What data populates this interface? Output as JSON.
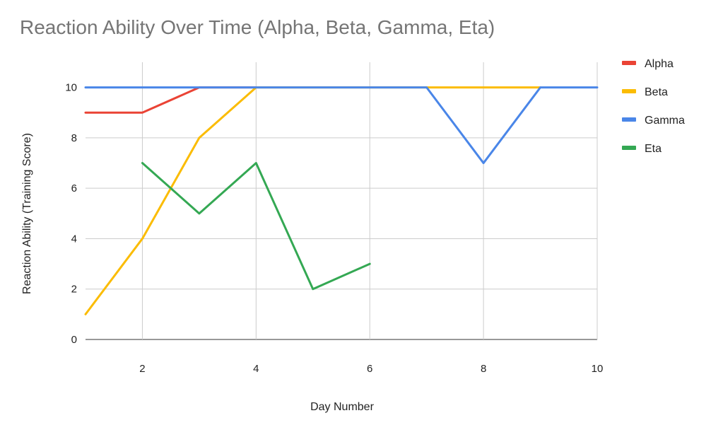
{
  "chart_data": {
    "type": "line",
    "title": "Reaction Ability Over Time (Alpha, Beta, Gamma, Eta)",
    "xlabel": "Day Number",
    "ylabel": "Reaction Ability (Training Score)",
    "xlim": [
      1,
      10
    ],
    "ylim": [
      0,
      11
    ],
    "x_ticks": [
      2,
      4,
      6,
      8,
      10
    ],
    "y_ticks": [
      0,
      2,
      4,
      6,
      8,
      10
    ],
    "grid": true,
    "legend_position": "right",
    "series": [
      {
        "name": "Alpha",
        "color": "#ea4335",
        "points": [
          [
            1,
            9
          ],
          [
            2,
            9
          ],
          [
            3,
            10
          ],
          [
            4,
            10
          ]
        ]
      },
      {
        "name": "Beta",
        "color": "#fbbc04",
        "points": [
          [
            1,
            1
          ],
          [
            2,
            4
          ],
          [
            3,
            8
          ],
          [
            4,
            10
          ],
          [
            5,
            10
          ],
          [
            6,
            10
          ],
          [
            7,
            10
          ],
          [
            8,
            10
          ],
          [
            9,
            10
          ]
        ]
      },
      {
        "name": "Gamma",
        "color": "#4a86e8",
        "points": [
          [
            1,
            10
          ],
          [
            2,
            10
          ],
          [
            3,
            10
          ],
          [
            4,
            10
          ],
          [
            5,
            10
          ],
          [
            6,
            10
          ],
          [
            7,
            10
          ],
          [
            8,
            7
          ],
          [
            9,
            10
          ],
          [
            10,
            10
          ]
        ]
      },
      {
        "name": "Eta",
        "color": "#34a853",
        "points": [
          [
            2,
            7
          ],
          [
            3,
            5
          ],
          [
            4,
            7
          ],
          [
            5,
            2
          ],
          [
            6,
            3
          ]
        ]
      }
    ]
  }
}
